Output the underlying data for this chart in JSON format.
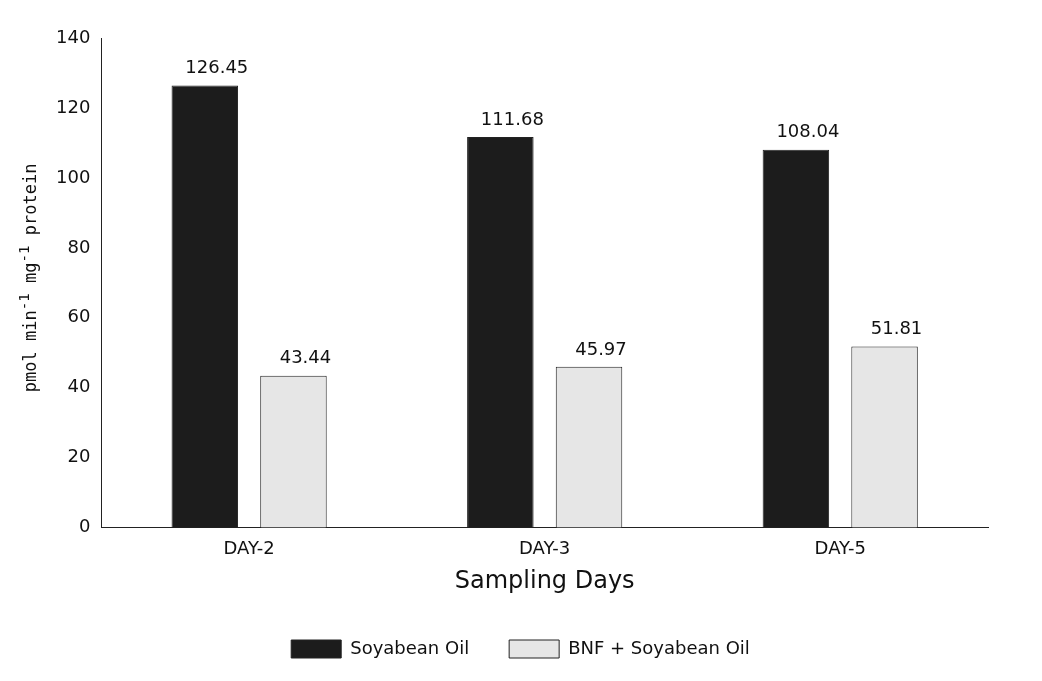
{
  "chart_data": {
    "type": "bar",
    "xlabel": "Sampling Days",
    "ylabel": "pmol min$^{-1}$ mg$^{-1}$ protein",
    "categories": [
      "DAY-2",
      "DAY-3",
      "DAY-5"
    ],
    "series": [
      {
        "name": "Soyabean Oil",
        "color": "#1c1c1c",
        "values": [
          126.45,
          111.68,
          108.04
        ]
      },
      {
        "name": "BNF + Soyabean Oil",
        "color": "#e6e6e6",
        "values": [
          43.44,
          45.97,
          51.81
        ]
      }
    ],
    "ylim": [
      0,
      140
    ],
    "yticks": [
      0,
      20,
      40,
      60,
      80,
      100,
      120,
      140
    ],
    "grid": false,
    "legend": "bottom",
    "data_labels": true
  }
}
